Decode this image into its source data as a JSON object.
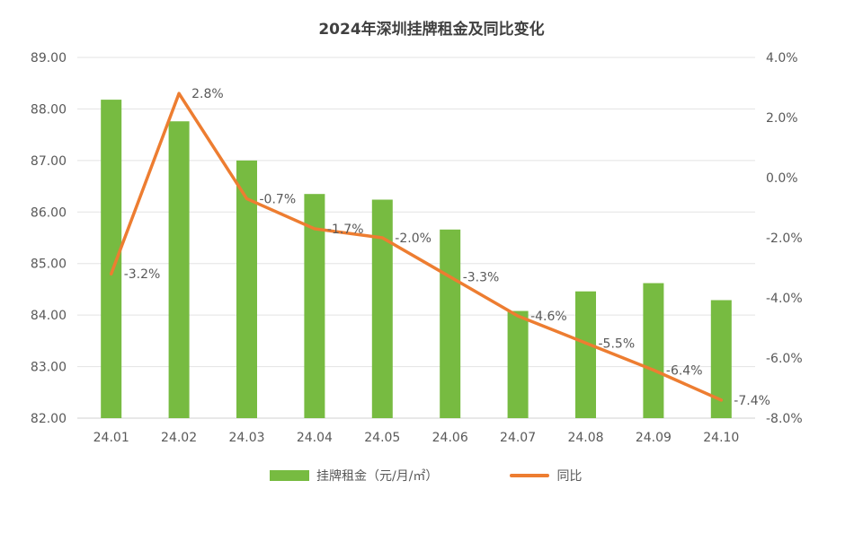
{
  "chart_data": {
    "type": "bar",
    "title": "2024年深圳挂牌租金及同比变化",
    "categories": [
      "24.01",
      "24.02",
      "24.03",
      "24.04",
      "24.05",
      "24.06",
      "24.07",
      "24.08",
      "24.09",
      "24.10"
    ],
    "series": [
      {
        "name": "挂牌租金（元/月/㎡）",
        "type": "bar",
        "axis": "left",
        "values": [
          88.18,
          87.76,
          87.0,
          86.35,
          86.24,
          85.66,
          84.08,
          84.46,
          84.62,
          84.29
        ]
      },
      {
        "name": "同比",
        "type": "line",
        "axis": "right",
        "values": [
          -3.2,
          2.8,
          -0.7,
          -1.7,
          -2.0,
          -3.3,
          -4.6,
          -5.5,
          -6.4,
          -7.4
        ],
        "data_labels": [
          "-3.2%",
          "2.8%",
          "-0.7%",
          "-1.7%",
          "-2.0%",
          "-3.3%",
          "-4.6%",
          "-5.5%",
          "-6.4%",
          "-7.4%"
        ]
      }
    ],
    "y_left": {
      "min": 82,
      "max": 89,
      "step": 1,
      "tick_labels": [
        "82.00",
        "83.00",
        "84.00",
        "85.00",
        "86.00",
        "87.00",
        "88.00",
        "89.00"
      ]
    },
    "y_right": {
      "min": -8,
      "max": 4,
      "step": 2,
      "tick_labels": [
        "-8.0%",
        "-6.0%",
        "-4.0%",
        "-2.0%",
        "0.0%",
        "2.0%",
        "4.0%"
      ]
    },
    "grid": true,
    "legend_position": "bottom",
    "colors": {
      "bar": "#77bb41",
      "line": "#ed7d31",
      "grid": "#e3e3e3",
      "axis": "#d0d0d0",
      "text": "#595959"
    }
  }
}
